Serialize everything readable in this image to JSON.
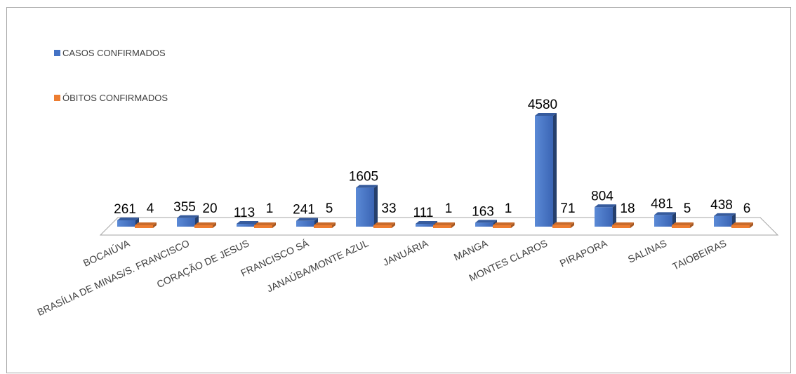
{
  "chart_data": {
    "type": "bar",
    "title": "",
    "xlabel": "",
    "ylabel": "",
    "categories": [
      "BOCAIÚVA",
      "BRASÍLIA DE MINAS/S. FRANCISCO",
      "CORAÇÃO DE JESUS",
      "FRANCISCO SÁ",
      "JANAÚBA/MONTE AZUL",
      "JANUÁRIA",
      "MANGA",
      "MONTES CLAROS",
      "PIRAPORA",
      "SALINAS",
      "TAIOBEIRAS"
    ],
    "series": [
      {
        "name": "CASOS CONFIRMADOS",
        "values": [
          261,
          355,
          113,
          241,
          1605,
          111,
          163,
          4580,
          804,
          481,
          438
        ],
        "color": "#4472c4"
      },
      {
        "name": "ÓBITOS CONFIRMADOS",
        "values": [
          4,
          20,
          1,
          5,
          33,
          1,
          1,
          71,
          18,
          5,
          6
        ],
        "color": "#ed7d31"
      }
    ],
    "legend_position": "top-left",
    "grid": false,
    "style": "3d-column",
    "data_labels": true
  }
}
